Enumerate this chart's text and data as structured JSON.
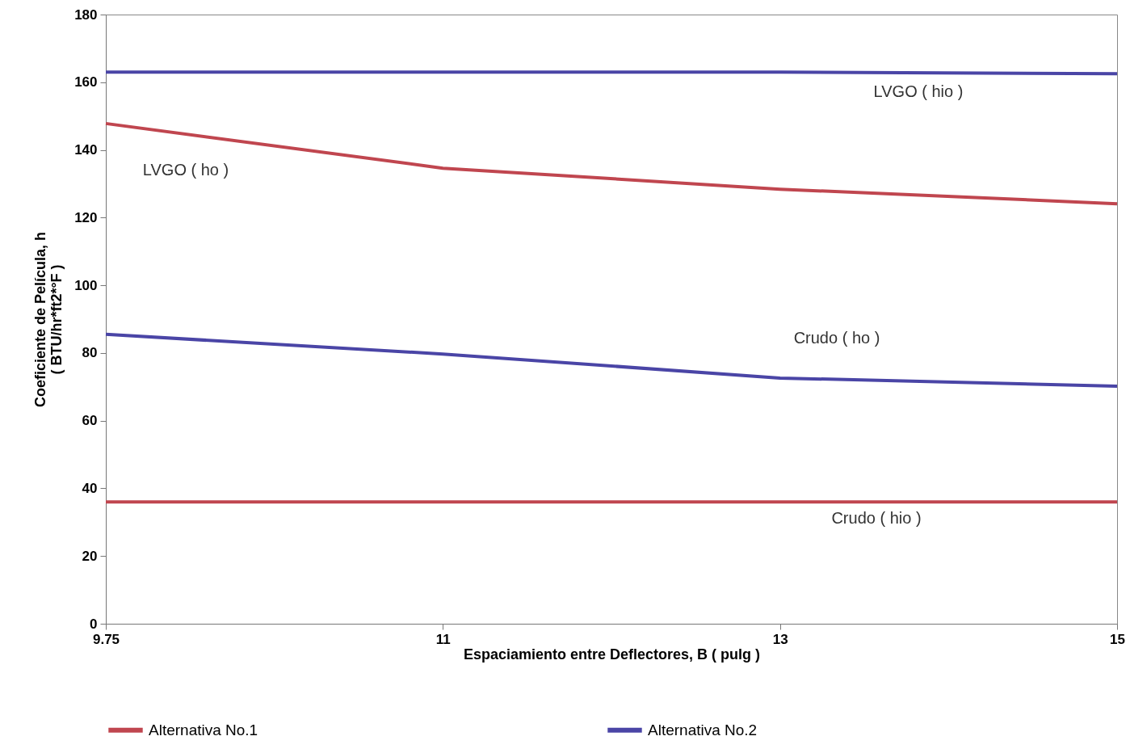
{
  "chart_data": {
    "type": "line",
    "xlabel": "Espaciamiento entre Deflectores, B ( pulg )",
    "ylabel": "Coeficiente de Película, h\n( BTU/hr*ft2*°F )",
    "categories": [
      "9.75",
      "11",
      "13",
      "15"
    ],
    "series": [
      {
        "name": "Alternativa No.1",
        "color": "#c0464f",
        "values": [
          147.8,
          134.6,
          128.4,
          124.1
        ]
      },
      {
        "color": "#c0464f",
        "values": [
          36,
          36,
          36,
          36
        ]
      },
      {
        "name": "Alternativa No.2",
        "color": "#4a45a6",
        "values": [
          163,
          163,
          163,
          162.5
        ]
      },
      {
        "color": "#4a45a6",
        "values": [
          85.5,
          79.7,
          72.6,
          70.2
        ]
      }
    ],
    "ylim": [
      0,
      180
    ],
    "yticks": [
      0,
      20,
      40,
      60,
      80,
      100,
      120,
      140,
      160,
      180
    ],
    "grid": false,
    "legend": "bottom",
    "marker": "none",
    "line_style": "solid",
    "annotations": [
      "LVGO ( hio )",
      "LVGO ( ho )",
      "Crudo ( ho )",
      "Crudo ( hio )"
    ]
  }
}
